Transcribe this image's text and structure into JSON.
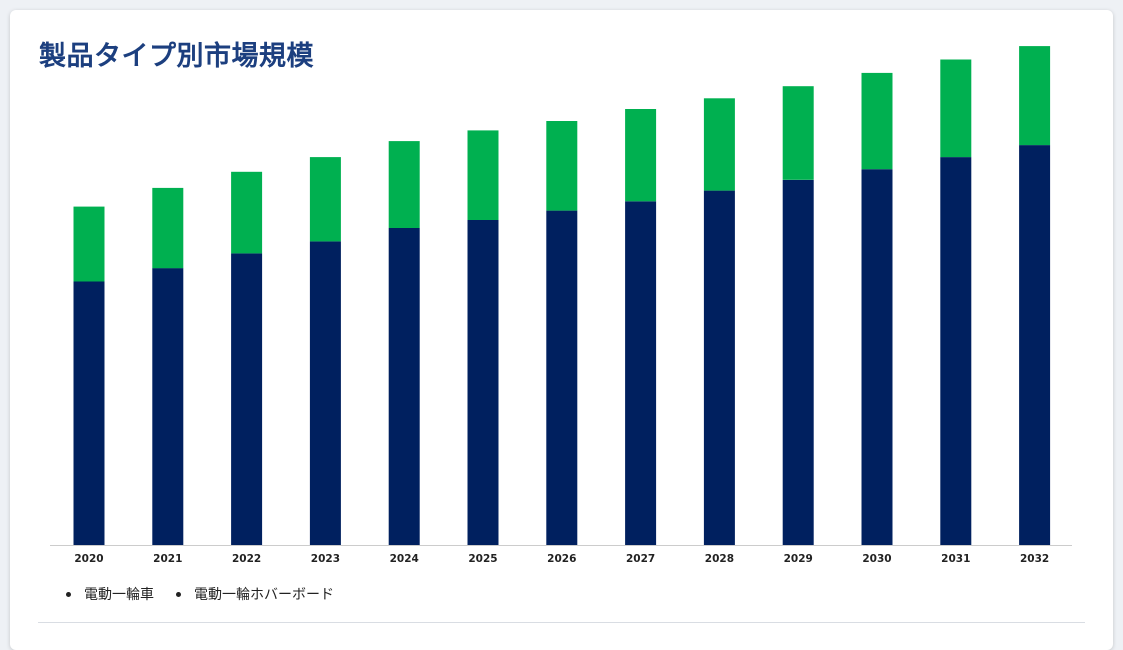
{
  "title": "製品タイプ別市場規模",
  "colors": {
    "series_bottom": "#00205f",
    "series_top": "#00b050",
    "title": "#1c3f7f",
    "axis": "#cccccc"
  },
  "chart_data": {
    "type": "bar",
    "stacked": true,
    "categories": [
      "2020",
      "2021",
      "2022",
      "2023",
      "2024",
      "2025",
      "2026",
      "2027",
      "2028",
      "2029",
      "2030",
      "2031",
      "2032"
    ],
    "series": [
      {
        "name": "電動一輪車",
        "color": "#00205f",
        "values": [
          197,
          207,
          218,
          227,
          237,
          243,
          250,
          257,
          265,
          273,
          281,
          290,
          299
        ]
      },
      {
        "name": "電動一輪ホバーボード",
        "color": "#00b050",
        "values": [
          56,
          60,
          61,
          63,
          65,
          67,
          67,
          69,
          69,
          70,
          72,
          73,
          74
        ]
      }
    ],
    "ylim": [
      0,
      400
    ],
    "grid": false,
    "y_axis_visible": false,
    "legend_position": "bottom-left"
  }
}
